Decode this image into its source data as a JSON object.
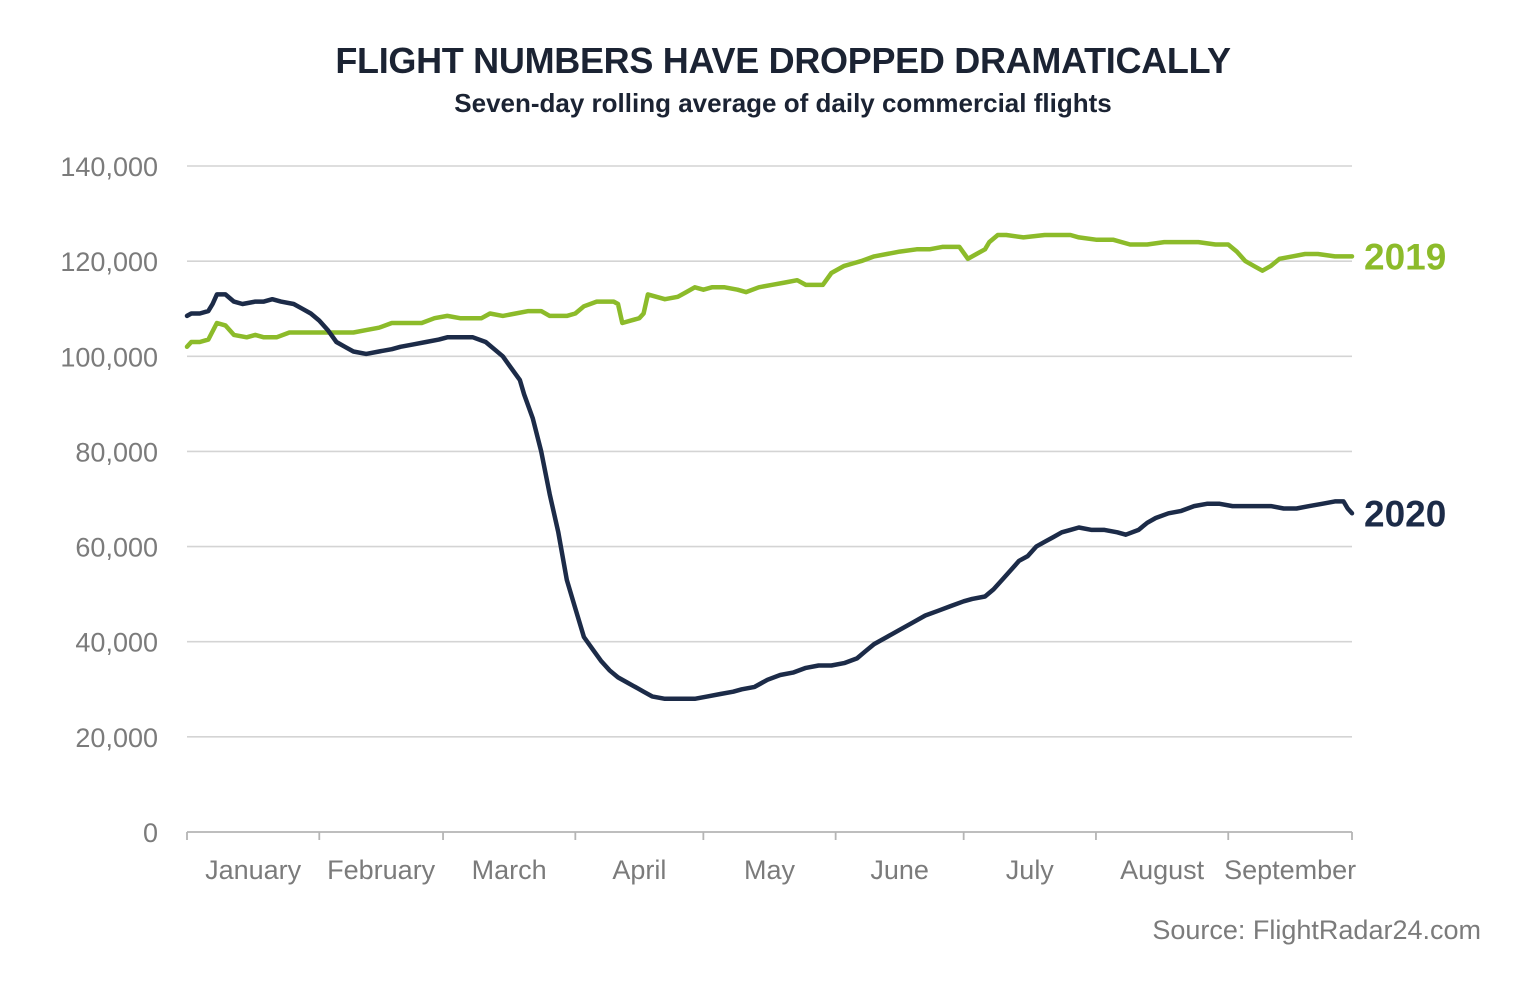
{
  "chart_data": {
    "type": "line",
    "title": "FLIGHT NUMBERS HAVE DROPPED DRAMATICALLY",
    "subtitle": "Seven-day rolling average of daily commercial flights",
    "source": "Source: FlightRadar24.com",
    "xlabel": "",
    "ylabel": "",
    "ylim": [
      0,
      140000
    ],
    "xlim": [
      1,
      274
    ],
    "grid": true,
    "yticks": [
      {
        "value": 0,
        "label": "0"
      },
      {
        "value": 20000,
        "label": "20,000"
      },
      {
        "value": 40000,
        "label": "40,000"
      },
      {
        "value": 60000,
        "label": "60,000"
      },
      {
        "value": 80000,
        "label": "80,000"
      },
      {
        "value": 100000,
        "label": "100,000"
      },
      {
        "value": 120000,
        "label": "120,000"
      },
      {
        "value": 140000,
        "label": "140,000"
      }
    ],
    "months": [
      {
        "label": "January",
        "start": 1
      },
      {
        "label": "February",
        "start": 32
      },
      {
        "label": "March",
        "start": 61
      },
      {
        "label": "April",
        "start": 92
      },
      {
        "label": "May",
        "start": 122
      },
      {
        "label": "June",
        "start": 153
      },
      {
        "label": "July",
        "start": 183
      },
      {
        "label": "August",
        "start": 214
      },
      {
        "label": "September",
        "start": 245
      }
    ],
    "x_axis_end": 275,
    "series": [
      {
        "name": "2019",
        "label": "2019",
        "color": "#8cbb2a",
        "points": [
          [
            1,
            102000
          ],
          [
            2,
            103000
          ],
          [
            4,
            103000
          ],
          [
            6,
            103500
          ],
          [
            8,
            107000
          ],
          [
            10,
            106500
          ],
          [
            12,
            104500
          ],
          [
            15,
            104000
          ],
          [
            17,
            104500
          ],
          [
            19,
            104000
          ],
          [
            22,
            104000
          ],
          [
            25,
            105000
          ],
          [
            30,
            105000
          ],
          [
            35,
            105000
          ],
          [
            40,
            105000
          ],
          [
            43,
            105500
          ],
          [
            46,
            106000
          ],
          [
            49,
            107000
          ],
          [
            52,
            107000
          ],
          [
            56,
            107000
          ],
          [
            59,
            108000
          ],
          [
            62,
            108500
          ],
          [
            65,
            108000
          ],
          [
            70,
            108000
          ],
          [
            72,
            109000
          ],
          [
            75,
            108500
          ],
          [
            78,
            109000
          ],
          [
            81,
            109500
          ],
          [
            84,
            109500
          ],
          [
            86,
            108500
          ],
          [
            90,
            108500
          ],
          [
            92,
            109000
          ],
          [
            94,
            110500
          ],
          [
            97,
            111500
          ],
          [
            101,
            111500
          ],
          [
            102,
            111000
          ],
          [
            103,
            107000
          ],
          [
            105,
            107500
          ],
          [
            107,
            108000
          ],
          [
            108,
            109000
          ],
          [
            109,
            113000
          ],
          [
            111,
            112500
          ],
          [
            113,
            112000
          ],
          [
            116,
            112500
          ],
          [
            118,
            113500
          ],
          [
            120,
            114500
          ],
          [
            122,
            114000
          ],
          [
            124,
            114500
          ],
          [
            127,
            114500
          ],
          [
            130,
            114000
          ],
          [
            132,
            113500
          ],
          [
            135,
            114500
          ],
          [
            138,
            115000
          ],
          [
            141,
            115500
          ],
          [
            144,
            116000
          ],
          [
            146,
            115000
          ],
          [
            148,
            115000
          ],
          [
            150,
            115000
          ],
          [
            152,
            117500
          ],
          [
            155,
            119000
          ],
          [
            157,
            119500
          ],
          [
            159,
            120000
          ],
          [
            162,
            121000
          ],
          [
            165,
            121500
          ],
          [
            168,
            122000
          ],
          [
            172,
            122500
          ],
          [
            175,
            122500
          ],
          [
            178,
            123000
          ],
          [
            180,
            123000
          ],
          [
            182,
            123000
          ],
          [
            184,
            120500
          ],
          [
            186,
            121500
          ],
          [
            188,
            122500
          ],
          [
            189,
            124000
          ],
          [
            191,
            125500
          ],
          [
            193,
            125500
          ],
          [
            197,
            125000
          ],
          [
            202,
            125500
          ],
          [
            208,
            125500
          ],
          [
            210,
            125000
          ],
          [
            214,
            124500
          ],
          [
            218,
            124500
          ],
          [
            222,
            123500
          ],
          [
            226,
            123500
          ],
          [
            230,
            124000
          ],
          [
            235,
            124000
          ],
          [
            238,
            124000
          ],
          [
            242,
            123500
          ],
          [
            245,
            123500
          ],
          [
            247,
            122000
          ],
          [
            249,
            120000
          ],
          [
            251,
            119000
          ],
          [
            253,
            118000
          ],
          [
            255,
            119000
          ],
          [
            257,
            120500
          ],
          [
            260,
            121000
          ],
          [
            263,
            121500
          ],
          [
            266,
            121500
          ],
          [
            270,
            121000
          ],
          [
            274,
            121000
          ]
        ]
      },
      {
        "name": "2020",
        "label": "2020",
        "color": "#1c2b48",
        "points": [
          [
            1,
            108500
          ],
          [
            2,
            109000
          ],
          [
            4,
            109000
          ],
          [
            6,
            109500
          ],
          [
            7,
            111000
          ],
          [
            8,
            113000
          ],
          [
            10,
            113000
          ],
          [
            12,
            111500
          ],
          [
            14,
            111000
          ],
          [
            17,
            111500
          ],
          [
            19,
            111500
          ],
          [
            21,
            112000
          ],
          [
            23,
            111500
          ],
          [
            26,
            111000
          ],
          [
            28,
            110000
          ],
          [
            30,
            109000
          ],
          [
            32,
            107500
          ],
          [
            34,
            105500
          ],
          [
            36,
            103000
          ],
          [
            38,
            102000
          ],
          [
            40,
            101000
          ],
          [
            43,
            100500
          ],
          [
            46,
            101000
          ],
          [
            49,
            101500
          ],
          [
            51,
            102000
          ],
          [
            54,
            102500
          ],
          [
            57,
            103000
          ],
          [
            60,
            103500
          ],
          [
            62,
            104000
          ],
          [
            65,
            104000
          ],
          [
            68,
            104000
          ],
          [
            71,
            103000
          ],
          [
            73,
            101500
          ],
          [
            75,
            100000
          ],
          [
            77,
            97500
          ],
          [
            79,
            95000
          ],
          [
            80,
            92000
          ],
          [
            82,
            87000
          ],
          [
            84,
            80000
          ],
          [
            86,
            71000
          ],
          [
            88,
            63000
          ],
          [
            90,
            53000
          ],
          [
            92,
            47000
          ],
          [
            94,
            41000
          ],
          [
            96,
            38500
          ],
          [
            98,
            36000
          ],
          [
            100,
            34000
          ],
          [
            102,
            32500
          ],
          [
            104,
            31500
          ],
          [
            106,
            30500
          ],
          [
            108,
            29500
          ],
          [
            110,
            28500
          ],
          [
            113,
            28000
          ],
          [
            116,
            28000
          ],
          [
            120,
            28000
          ],
          [
            123,
            28500
          ],
          [
            126,
            29000
          ],
          [
            129,
            29500
          ],
          [
            131,
            30000
          ],
          [
            134,
            30500
          ],
          [
            137,
            32000
          ],
          [
            140,
            33000
          ],
          [
            143,
            33500
          ],
          [
            146,
            34500
          ],
          [
            149,
            35000
          ],
          [
            152,
            35000
          ],
          [
            155,
            35500
          ],
          [
            158,
            36500
          ],
          [
            160,
            38000
          ],
          [
            162,
            39500
          ],
          [
            165,
            41000
          ],
          [
            168,
            42500
          ],
          [
            171,
            44000
          ],
          [
            174,
            45500
          ],
          [
            177,
            46500
          ],
          [
            180,
            47500
          ],
          [
            183,
            48500
          ],
          [
            185,
            49000
          ],
          [
            188,
            49500
          ],
          [
            190,
            51000
          ],
          [
            192,
            53000
          ],
          [
            194,
            55000
          ],
          [
            196,
            57000
          ],
          [
            198,
            58000
          ],
          [
            200,
            60000
          ],
          [
            202,
            61000
          ],
          [
            204,
            62000
          ],
          [
            206,
            63000
          ],
          [
            208,
            63500
          ],
          [
            210,
            64000
          ],
          [
            213,
            63500
          ],
          [
            216,
            63500
          ],
          [
            219,
            63000
          ],
          [
            221,
            62500
          ],
          [
            224,
            63500
          ],
          [
            226,
            65000
          ],
          [
            228,
            66000
          ],
          [
            231,
            67000
          ],
          [
            234,
            67500
          ],
          [
            237,
            68500
          ],
          [
            240,
            69000
          ],
          [
            243,
            69000
          ],
          [
            246,
            68500
          ],
          [
            249,
            68500
          ],
          [
            252,
            68500
          ],
          [
            255,
            68500
          ],
          [
            258,
            68000
          ],
          [
            261,
            68000
          ],
          [
            264,
            68500
          ],
          [
            267,
            69000
          ],
          [
            270,
            69500
          ],
          [
            272,
            69500
          ],
          [
            273,
            68000
          ],
          [
            274,
            67000
          ]
        ]
      }
    ]
  }
}
